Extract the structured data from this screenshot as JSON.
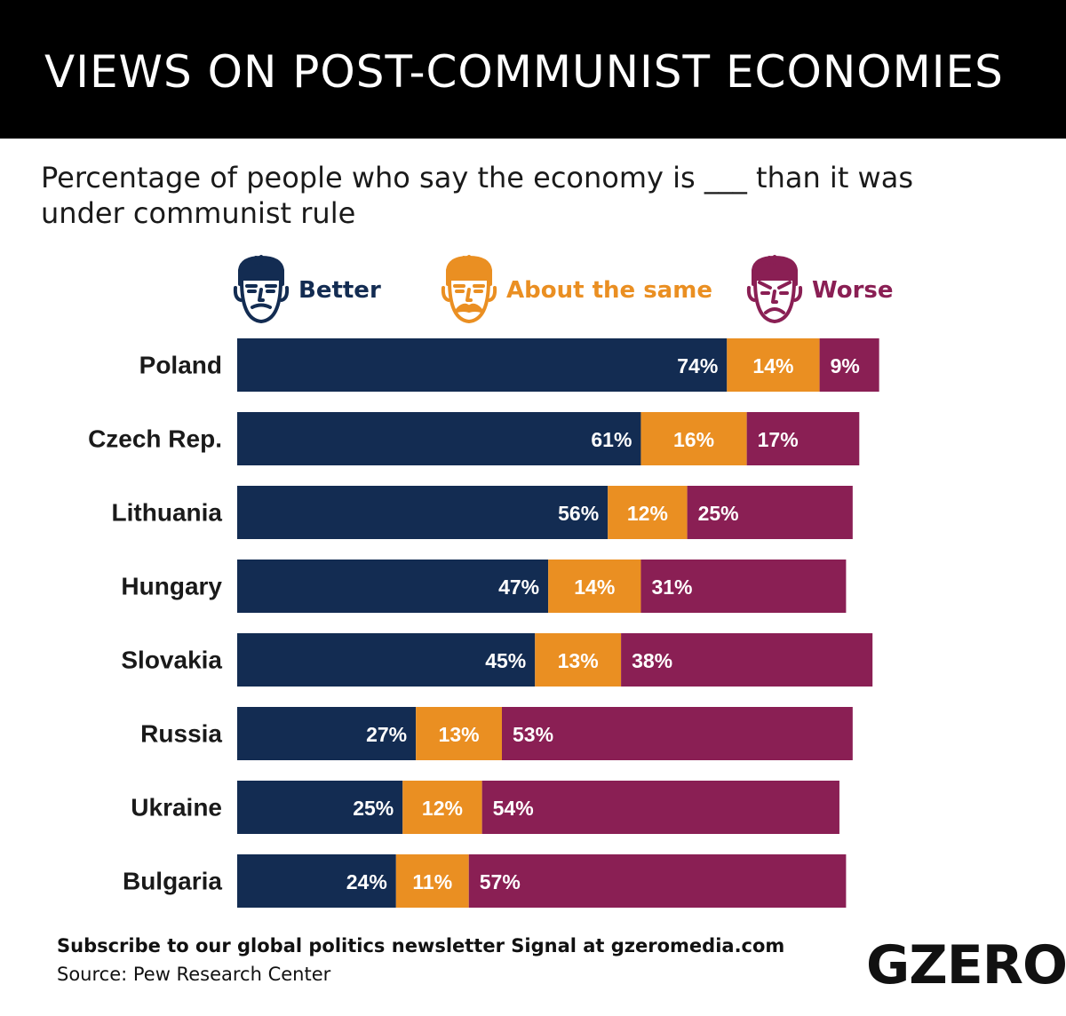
{
  "header": {
    "title": "VIEWS ON POST-COMMUNIST ECONOMIES"
  },
  "subtitle": "Percentage of people who say the economy is ___ than it was under communist rule",
  "legend": [
    {
      "label": "Better",
      "color": "#132c52",
      "icon": "neutral-face-icon"
    },
    {
      "label": "About the same",
      "color": "#ea8f22",
      "icon": "mustache-face-icon"
    },
    {
      "label": "Worse",
      "color": "#8a1f54",
      "icon": "angry-face-icon"
    }
  ],
  "chart_data": {
    "type": "bar",
    "orientation": "horizontal",
    "stacked": true,
    "categories": [
      "Poland",
      "Czech Rep.",
      "Lithuania",
      "Hungary",
      "Slovakia",
      "Russia",
      "Ukraine",
      "Bulgaria"
    ],
    "series": [
      {
        "name": "Better",
        "color": "#132c52",
        "values": [
          74,
          61,
          56,
          47,
          45,
          27,
          25,
          24
        ]
      },
      {
        "name": "About the same",
        "color": "#ea8f22",
        "values": [
          14,
          16,
          12,
          14,
          13,
          13,
          12,
          11
        ]
      },
      {
        "name": "Worse",
        "color": "#8a1f54",
        "values": [
          9,
          17,
          25,
          31,
          38,
          53,
          54,
          57
        ]
      }
    ],
    "value_suffix": "%",
    "xlim": [
      0,
      100
    ],
    "grid": false,
    "legend_position": "top"
  },
  "footer": {
    "subscribe": "Subscribe to our global politics newsletter Signal at gzeromedia.com",
    "source": "Source: Pew Research Center",
    "logo": "GZERO"
  }
}
